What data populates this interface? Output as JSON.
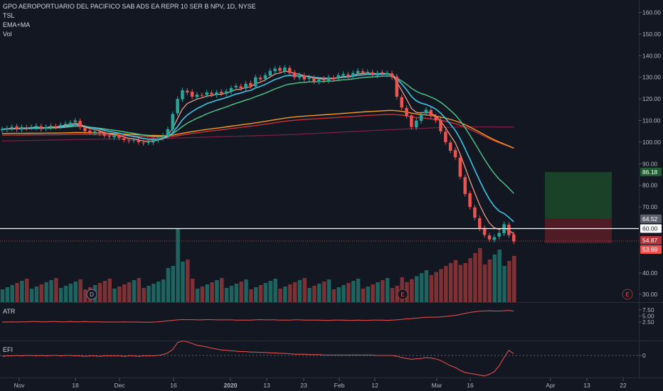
{
  "header": {
    "symbol": "GPO AEROPORTUARIO DEL PACIFICO SAB ADS EA REPR 10 SER B NPV, 1D, NYSE",
    "indicators": [
      "TSL",
      "EMA+MA",
      "Vol"
    ]
  },
  "panes": {
    "atr_label": "ATR",
    "efi_label": "EFI"
  },
  "colors": {
    "background": "#131722",
    "up": "#26a69a",
    "down": "#ef5350",
    "ema_fast": "#f6a58c",
    "ema_mid": "#3fc5e8",
    "ema_slow": "#52c98c",
    "ma_purple": "#7b2044",
    "ma_orange": "#f59a23",
    "ma_red": "#c83232",
    "target_zone": "#1b4a2a",
    "stop_zone": "#5a1d26"
  },
  "chart_data": [
    {
      "type": "candlestick",
      "title": "GPO AEROPORTUARIO DEL PACIFICO SAB ADS EA REPR 10 SER B NPV, 1D, NYSE",
      "x_ticks": [
        "Nov",
        "18",
        "Dec",
        "16",
        "2020",
        "13",
        "23",
        "Feb",
        "12",
        "Mar",
        "16",
        "Apr",
        "13",
        "22"
      ],
      "y_ticks": [
        "160.00",
        "150.00",
        "140.00",
        "130.00",
        "120.00",
        "110.00",
        "100.00",
        "90.00",
        "80.00",
        "70.00",
        "40.00",
        "30.00"
      ],
      "ylim": [
        26,
        166
      ],
      "closes": [
        106,
        106.5,
        107,
        106,
        107,
        106.5,
        107,
        107.5,
        106,
        107,
        107.5,
        107,
        108,
        108.5,
        109,
        110,
        107,
        105,
        104.5,
        105,
        104,
        103,
        102.5,
        103,
        102,
        101,
        100.5,
        101,
        100,
        99.5,
        100,
        101,
        101.5,
        103,
        106,
        113,
        120,
        124,
        123,
        121,
        122,
        121.5,
        123,
        122,
        123,
        122.5,
        123.5,
        125,
        126,
        125,
        127,
        126,
        130,
        129,
        131,
        133,
        134,
        133,
        134.5,
        132,
        130,
        131,
        129,
        130,
        128,
        129,
        128.5,
        130,
        129,
        131,
        131.5,
        130,
        132,
        133,
        132,
        132.5,
        131,
        132,
        131.5,
        132,
        130,
        121,
        116,
        112,
        107,
        110,
        113,
        115,
        112,
        110,
        105,
        100,
        96,
        93,
        84,
        76,
        70,
        65,
        60,
        57,
        55,
        56,
        58,
        62,
        57,
        54
      ],
      "badges": {
        "target": "86.18",
        "entry_price": "64.52",
        "line": "60.00",
        "stop": "54.87",
        "last": "53.69"
      },
      "event_markers": [
        "D",
        "E",
        "E"
      ]
    },
    {
      "type": "line",
      "title": "ATR",
      "y_ticks": [
        "7.50",
        "5.00",
        "2.50"
      ],
      "ylim": [
        1.5,
        7.6
      ],
      "values": [
        2.5,
        2.5,
        2.6,
        2.5,
        2.6,
        2.6,
        2.7,
        2.7,
        2.6,
        2.6,
        2.7,
        2.7,
        2.6,
        2.6,
        2.7,
        2.6,
        2.6,
        2.7,
        2.6,
        2.6,
        2.6,
        2.5,
        2.5,
        2.5,
        2.5,
        2.6,
        2.5,
        2.5,
        2.5,
        2.4,
        2.4,
        2.5,
        2.6,
        2.8,
        3.0,
        3.2,
        3.4,
        3.5,
        3.5,
        3.5,
        3.4,
        3.4,
        3.5,
        3.5,
        3.4,
        3.4,
        3.4,
        3.4,
        3.3,
        3.3,
        3.3,
        3.3,
        3.4,
        3.5,
        3.4,
        3.4,
        3.4,
        3.3,
        3.3,
        3.3,
        3.4,
        3.4,
        3.3,
        3.3,
        3.3,
        3.3,
        3.2,
        3.2,
        3.3,
        3.3,
        3.3,
        3.2,
        3.2,
        3.3,
        3.2,
        3.2,
        3.3,
        3.3,
        3.3,
        3.2,
        3.3,
        3.4,
        3.6,
        3.8,
        3.9,
        4.1,
        4.3,
        4.4,
        4.5,
        4.5,
        4.6,
        4.8,
        5.0,
        5.2,
        5.6,
        6.0,
        6.4,
        6.7,
        6.9,
        7.0,
        7.1,
        7.0,
        7.0,
        7.1,
        7.2,
        7.0
      ]
    },
    {
      "type": "line",
      "title": "EFI",
      "y_ticks": [
        "0"
      ],
      "ylim": [
        -60,
        38
      ],
      "values": [
        -2,
        -1,
        -1,
        0,
        -1,
        0,
        0,
        -1,
        0,
        -1,
        0,
        0,
        -1,
        0,
        0,
        -1,
        -1,
        -2,
        -1,
        -1,
        -2,
        -1,
        -1,
        -1,
        -1,
        -2,
        -1,
        -1,
        -2,
        -1,
        -1,
        -1,
        0,
        2,
        6,
        14,
        30,
        34,
        32,
        28,
        24,
        22,
        20,
        17,
        15,
        13,
        12,
        11,
        10,
        9,
        9,
        8,
        8,
        7,
        7,
        6,
        6,
        5,
        5,
        4,
        3,
        3,
        3,
        2,
        2,
        2,
        1,
        1,
        1,
        1,
        1,
        1,
        1,
        1,
        1,
        1,
        1,
        0,
        0,
        0,
        0,
        -2,
        -5,
        -7,
        -9,
        -8,
        -7,
        -5,
        -6,
        -8,
        -12,
        -18,
        -24,
        -28,
        -35,
        -40,
        -42,
        -44,
        -46,
        -48,
        -44,
        -38,
        -24,
        -5,
        12,
        4
      ]
    }
  ]
}
